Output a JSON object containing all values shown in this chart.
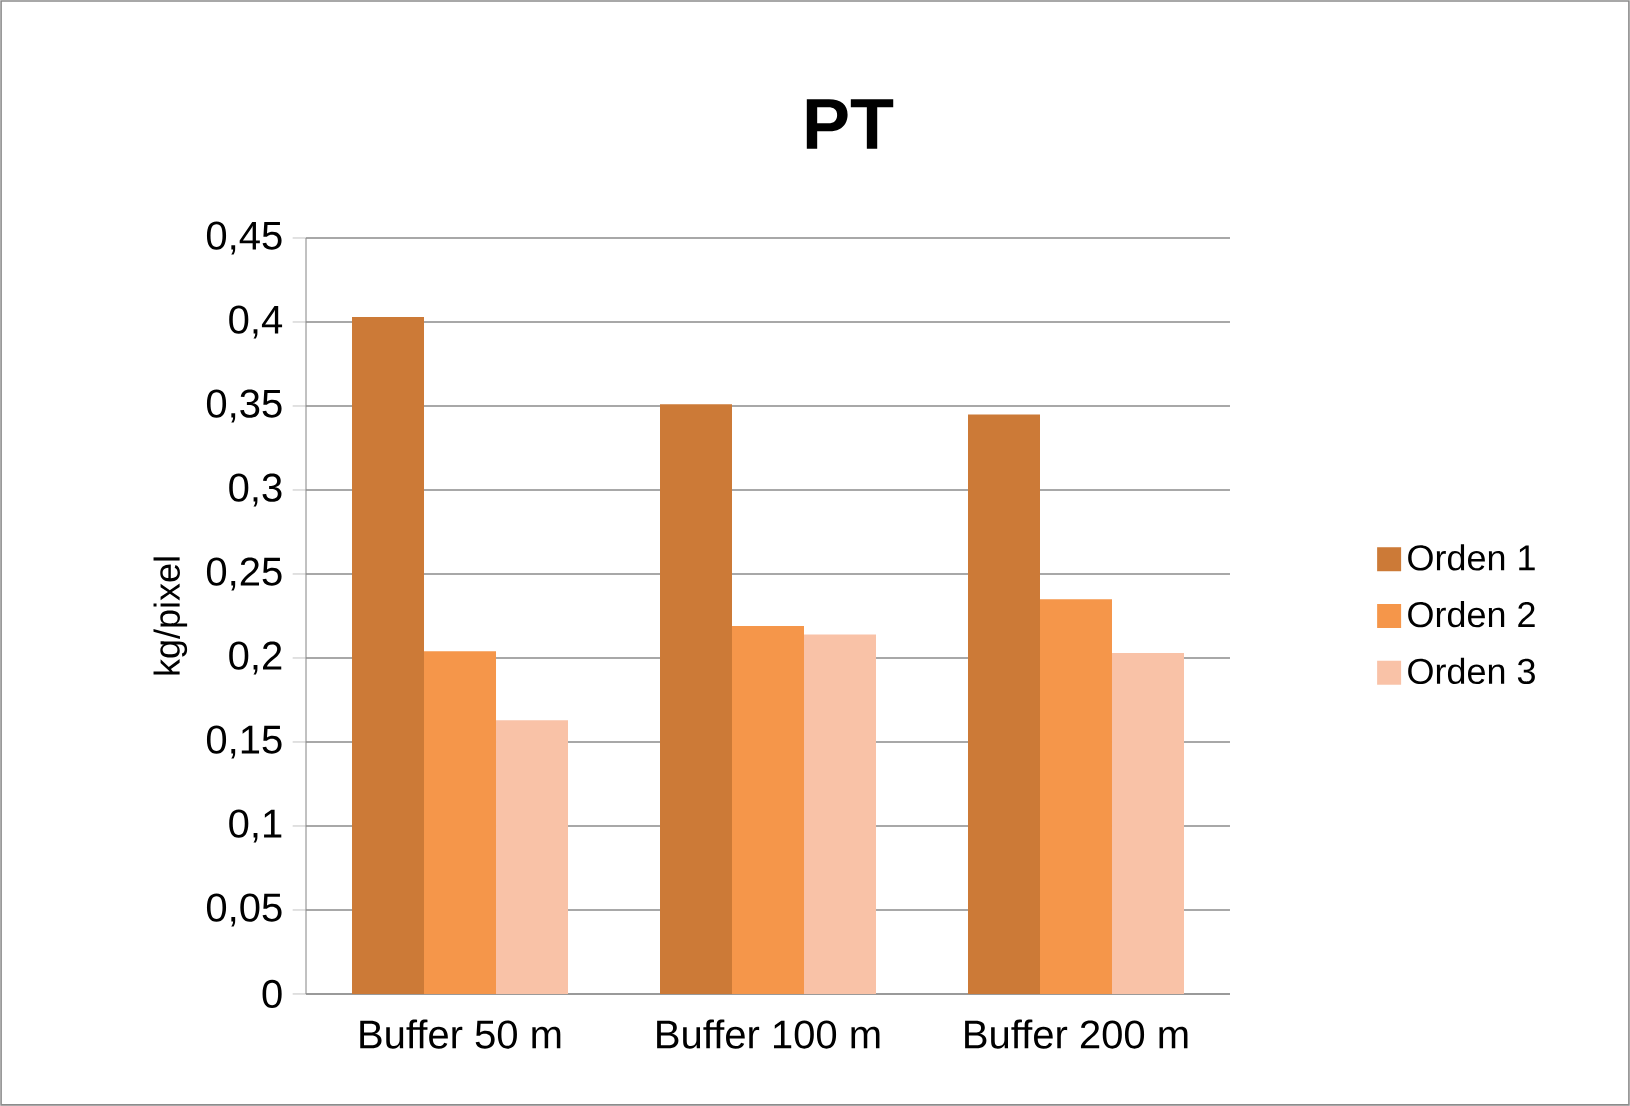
{
  "chart_data": {
    "type": "bar",
    "title": "PT",
    "ylabel": "kg/pixel",
    "categories": [
      "Buffer 50 m",
      "Buffer 100 m",
      "Buffer 200 m"
    ],
    "series": [
      {
        "name": "Orden 1",
        "color": "#cc7a37",
        "values": [
          0.403,
          0.351,
          0.345
        ]
      },
      {
        "name": "Orden 2",
        "color": "#f5964a",
        "values": [
          0.204,
          0.219,
          0.235
        ]
      },
      {
        "name": "Orden 3",
        "color": "#f9c2a7",
        "values": [
          0.163,
          0.214,
          0.203
        ]
      }
    ],
    "ylim": [
      0,
      0.45
    ],
    "yticks": [
      {
        "value": 0,
        "label": "0"
      },
      {
        "value": 0.05,
        "label": "0,05"
      },
      {
        "value": 0.1,
        "label": "0,1"
      },
      {
        "value": 0.15,
        "label": "0,15"
      },
      {
        "value": 0.2,
        "label": "0,2"
      },
      {
        "value": 0.25,
        "label": "0,25"
      },
      {
        "value": 0.3,
        "label": "0,3"
      },
      {
        "value": 0.35,
        "label": "0,35"
      },
      {
        "value": 0.4,
        "label": "0,4"
      },
      {
        "value": 0.45,
        "label": "0,45"
      }
    ],
    "grid": "y",
    "legend": "right"
  }
}
